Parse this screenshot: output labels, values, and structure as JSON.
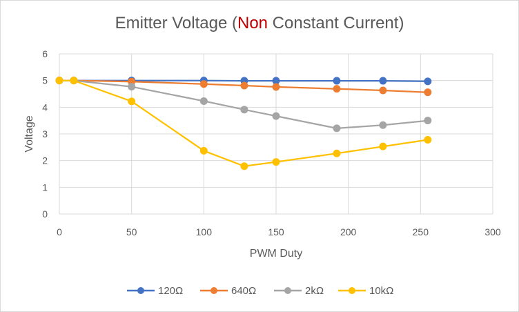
{
  "chart_data": {
    "type": "line",
    "title": {
      "prefix": "Emitter Voltage (",
      "highlight": "Non",
      "suffix": " Constant Current)",
      "highlight_color": "#c00000"
    },
    "xlabel": "PWM Duty",
    "ylabel": "Voltage",
    "xlim": [
      0,
      300
    ],
    "ylim": [
      0,
      6
    ],
    "xticks": [
      0,
      50,
      100,
      150,
      200,
      250,
      300
    ],
    "yticks": [
      0,
      1,
      2,
      3,
      4,
      5,
      6
    ],
    "grid": true,
    "legend_position": "bottom",
    "series": [
      {
        "name": "120Ω",
        "color": "#4472c4",
        "x": [
          0,
          10,
          50,
          100,
          128,
          150,
          192,
          224,
          255
        ],
        "y": [
          5.0,
          5.0,
          5.0,
          5.0,
          4.99,
          4.99,
          4.99,
          4.99,
          4.97
        ]
      },
      {
        "name": "640Ω",
        "color": "#ed7d31",
        "x": [
          0,
          10,
          50,
          100,
          128,
          150,
          192,
          224,
          255
        ],
        "y": [
          5.0,
          5.0,
          4.96,
          4.87,
          4.81,
          4.76,
          4.69,
          4.63,
          4.56
        ]
      },
      {
        "name": "2kΩ",
        "color": "#a5a5a5",
        "x": [
          0,
          10,
          50,
          100,
          128,
          150,
          192,
          224,
          255
        ],
        "y": [
          5.0,
          5.0,
          4.77,
          4.23,
          3.91,
          3.67,
          3.21,
          3.33,
          3.5
        ]
      },
      {
        "name": "10kΩ",
        "color": "#ffc000",
        "x": [
          0,
          10,
          50,
          100,
          128,
          150,
          192,
          224,
          255
        ],
        "y": [
          5.0,
          5.0,
          4.22,
          2.37,
          1.79,
          1.95,
          2.27,
          2.53,
          2.78
        ]
      }
    ]
  }
}
